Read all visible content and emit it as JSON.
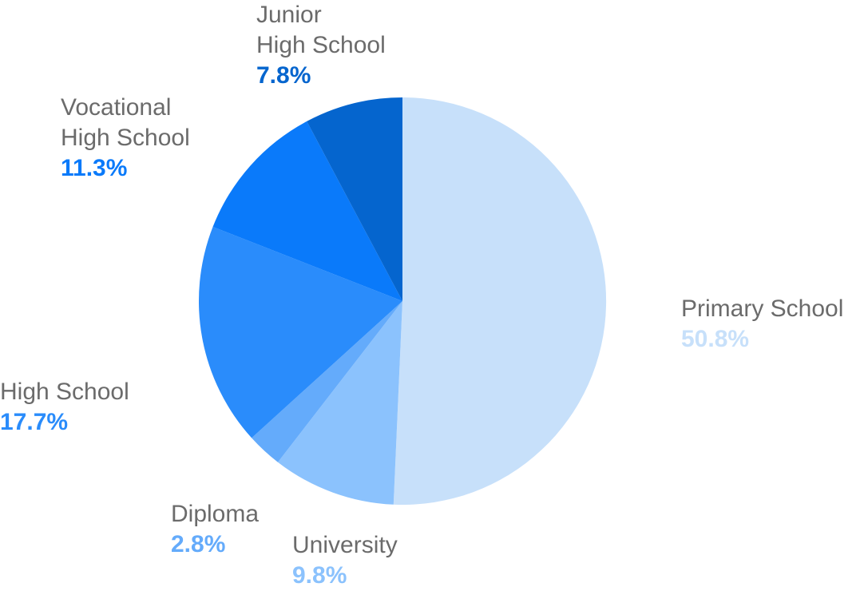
{
  "chart_data": {
    "type": "pie",
    "title": "",
    "slices": [
      {
        "label": "Primary School",
        "name_display": "Primary School",
        "value": 50.8,
        "value_label": "50.8%",
        "color": "#c7e0fa"
      },
      {
        "label": "University",
        "name_display": "University",
        "value": 9.8,
        "value_label": "9.8%",
        "color": "#8bc2fd"
      },
      {
        "label": "Diploma",
        "name_display": "Diploma",
        "value": 2.8,
        "value_label": "2.8%",
        "color": "#64abfb"
      },
      {
        "label": "High School",
        "name_display": "High School",
        "value": 17.7,
        "value_label": "17.7%",
        "color": "#2a8cfb"
      },
      {
        "label": "Vocational High School",
        "name_display": "Vocational\nHigh School",
        "value": 11.3,
        "value_label": "11.3%",
        "color": "#0a7afa"
      },
      {
        "label": "Junior High School",
        "name_display": "Junior\nHigh School",
        "value": 7.8,
        "value_label": "7.8%",
        "color": "#0565ce"
      }
    ]
  }
}
